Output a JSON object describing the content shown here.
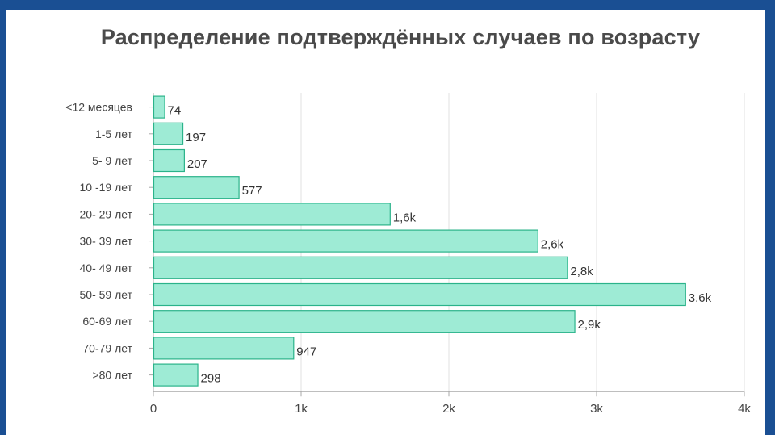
{
  "chart_data": {
    "type": "bar",
    "orientation": "horizontal",
    "title": "Распределение подтверждённых случаев по возрасту",
    "xlabel": "",
    "ylabel": "",
    "xlim": [
      0,
      4000
    ],
    "x_ticks": [
      0,
      1000,
      2000,
      3000,
      4000
    ],
    "x_tick_labels": [
      "0",
      "1k",
      "2k",
      "3k",
      "4k"
    ],
    "grid": true,
    "categories": [
      "<12 месяцев",
      "1-5 лет",
      "5- 9 лет",
      "10 -19 лет",
      "20- 29 лет",
      "30- 39 лет",
      "40- 49 лет",
      "50- 59 лет",
      "60-69 лет",
      "70-79 лет",
      ">80 лет"
    ],
    "values": [
      74,
      197,
      207,
      577,
      1600,
      2600,
      2800,
      3600,
      2850,
      947,
      298
    ],
    "value_labels": [
      "74",
      "197",
      "207",
      "577",
      "1,6k",
      "2,6k",
      "2,8k",
      "3,6k",
      "2,9k",
      "947",
      "298"
    ],
    "colors": {
      "bar_fill": "#9eebd5",
      "bar_stroke": "#2bb38a",
      "grid": "#e2e2e2",
      "axis": "#a8a8a8",
      "frame": "#1a4f93"
    }
  }
}
